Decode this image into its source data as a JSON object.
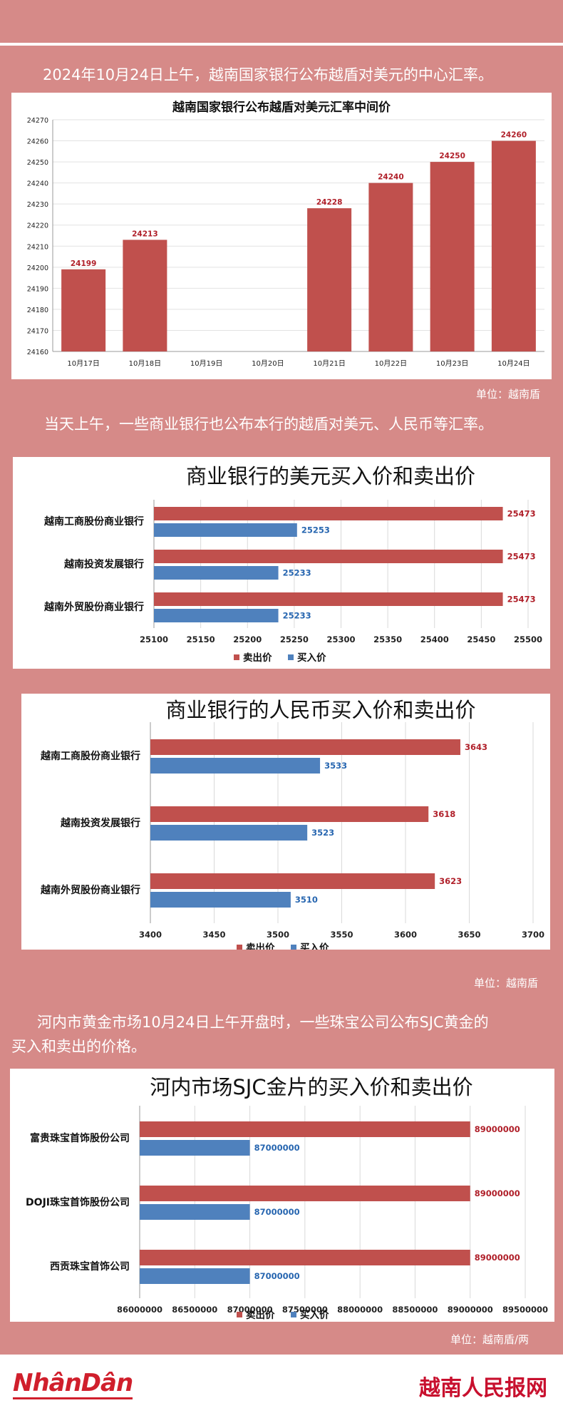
{
  "intro1": "2024年10月24日上午，越南国家银行公布越盾对美元的中心汇率。",
  "unit1": "单位：越南盾",
  "intro2": "当天上午，一些商业银行也公布本行的越盾对美元、人民币等汇率。",
  "unit2": "单位：越南盾",
  "intro3a": "河内市黄金市场10月24日上午开盘时，一些珠宝公司公布SJC黄金的",
  "intro3b": "买入和卖出的价格。",
  "unit3": "单位：越南盾/两",
  "footer": {
    "logo_left": "NhânDân",
    "logo_right": "越南人民报网"
  },
  "colors": {
    "sell": "#c0504d",
    "buy": "#4f81bd",
    "background": "#d68a88"
  },
  "chart_data": [
    {
      "type": "bar",
      "title": "越南国家银行公布越盾对美元汇率中间价",
      "categories": [
        "10月17日",
        "10月18日",
        "10月19日",
        "10月20日",
        "10月21日",
        "10月22日",
        "10月23日",
        "10月24日"
      ],
      "values": [
        24199,
        24213,
        null,
        null,
        24228,
        24240,
        24250,
        24260
      ],
      "ylim": [
        24160,
        24270
      ],
      "yticks": [
        24160,
        24170,
        24180,
        24190,
        24200,
        24210,
        24220,
        24230,
        24240,
        24250,
        24260,
        24270
      ]
    },
    {
      "type": "bar",
      "orientation": "horizontal",
      "title": "商业银行的美元买入价和卖出价",
      "categories": [
        "越南工商股份商业银行",
        "越南投资发展银行",
        "越南外贸股份商业银行"
      ],
      "series": [
        {
          "name": "卖出价",
          "values": [
            25473,
            25473,
            25473
          ]
        },
        {
          "name": "买入价",
          "values": [
            25253,
            25233,
            25233
          ]
        }
      ],
      "xlim": [
        25100,
        25500
      ],
      "xticks": [
        25100,
        25150,
        25200,
        25250,
        25300,
        25350,
        25400,
        25450,
        25500
      ]
    },
    {
      "type": "bar",
      "orientation": "horizontal",
      "title": "商业银行的人民币买入价和卖出价",
      "categories": [
        "越南工商股份商业银行",
        "越南投资发展银行",
        "越南外贸股份商业银行"
      ],
      "series": [
        {
          "name": "卖出价",
          "values": [
            3643,
            3618,
            3623
          ]
        },
        {
          "name": "买入价",
          "values": [
            3533,
            3523,
            3510
          ]
        }
      ],
      "xlim": [
        3400,
        3700
      ],
      "xticks": [
        3400,
        3450,
        3500,
        3550,
        3600,
        3650,
        3700
      ]
    },
    {
      "type": "bar",
      "orientation": "horizontal",
      "title": "河内市场SJC金片的买入价和卖出价",
      "categories": [
        "富贵珠宝首饰股份公司",
        "DOJI珠宝首饰股份公司",
        "西贡珠宝首饰公司"
      ],
      "series": [
        {
          "name": "卖出价",
          "values": [
            89000000,
            89000000,
            89000000
          ]
        },
        {
          "name": "买入价",
          "values": [
            87000000,
            87000000,
            87000000
          ]
        }
      ],
      "xlim": [
        86000000,
        89500000
      ],
      "xticks": [
        86000000,
        86500000,
        87000000,
        87500000,
        88000000,
        88500000,
        89000000,
        89500000
      ]
    }
  ]
}
